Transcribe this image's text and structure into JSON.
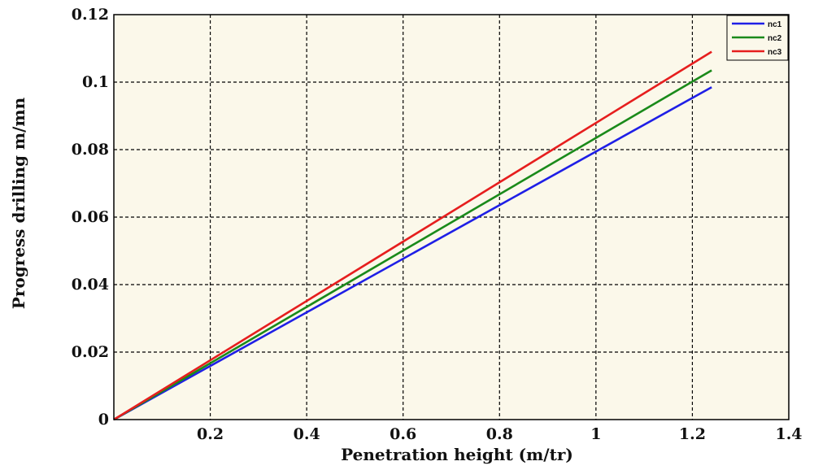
{
  "chart_data": {
    "type": "line",
    "xlabel": "Penetration height (m/tr)",
    "ylabel": "Progress drilling m/mn",
    "xlim": [
      0,
      1.4
    ],
    "ylim": [
      0,
      0.12
    ],
    "x_ticks": [
      "0.2",
      "0.4",
      "0.6",
      "0.8",
      "1",
      "1.2",
      "1.4"
    ],
    "y_ticks": [
      "0",
      "0.02",
      "0.04",
      "0.06",
      "0.08",
      "0.1",
      "0.12"
    ],
    "grid": true,
    "legend_position": "top-right",
    "series": [
      {
        "name": "nc1",
        "color": "#1f1fe6",
        "x": [
          0,
          1.24
        ],
        "y": [
          0,
          0.0985
        ]
      },
      {
        "name": "nc2",
        "color": "#1a8a1a",
        "x": [
          0,
          1.24
        ],
        "y": [
          0,
          0.1035
        ]
      },
      {
        "name": "nc3",
        "color": "#e61e1e",
        "x": [
          0,
          1.24
        ],
        "y": [
          0,
          0.109
        ]
      }
    ]
  }
}
